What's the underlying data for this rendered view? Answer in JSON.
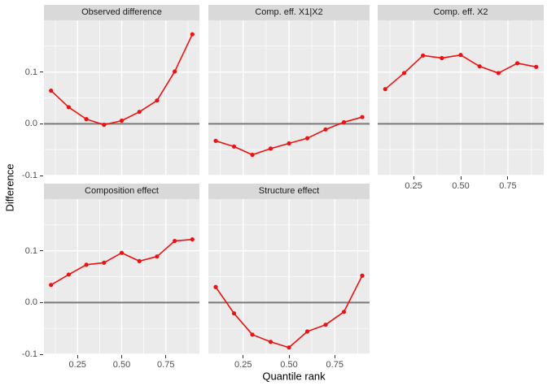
{
  "chart_data": {
    "type": "line",
    "title": "",
    "xlabel": "Quantile rank",
    "ylabel": "Difference",
    "legend": "none",
    "grid": true,
    "x": [
      0.1,
      0.2,
      0.3,
      0.4,
      0.5,
      0.6,
      0.7,
      0.8,
      0.9
    ],
    "panels": [
      {
        "title": "Observed difference",
        "row": 0,
        "col": 0,
        "values": [
          0.064,
          0.032,
          0.009,
          -0.002,
          0.006,
          0.023,
          0.045,
          0.101,
          0.173
        ]
      },
      {
        "title": "Comp. eff. X1|X2",
        "row": 0,
        "col": 1,
        "values": [
          -0.033,
          -0.044,
          -0.06,
          -0.048,
          -0.038,
          -0.028,
          -0.011,
          0.003,
          0.013
        ]
      },
      {
        "title": "Comp. eff. X2",
        "row": 0,
        "col": 2,
        "values": [
          0.067,
          0.098,
          0.132,
          0.127,
          0.133,
          0.111,
          0.098,
          0.117,
          0.11
        ]
      },
      {
        "title": "Composition effect",
        "row": 1,
        "col": 0,
        "values": [
          0.034,
          0.054,
          0.073,
          0.077,
          0.096,
          0.08,
          0.089,
          0.119,
          0.122
        ]
      },
      {
        "title": "Structure effect",
        "row": 1,
        "col": 1,
        "values": [
          0.03,
          -0.021,
          -0.062,
          -0.076,
          -0.087,
          -0.056,
          -0.043,
          -0.018,
          0.052
        ]
      }
    ],
    "x_axis": {
      "domain": [
        0.06,
        0.94
      ],
      "tick_values": [
        0.25,
        0.5,
        0.75
      ],
      "tick_labels": [
        "0.25",
        "0.50",
        "0.75"
      ],
      "minor_ticks": [
        0.125,
        0.375,
        0.625,
        0.875
      ]
    },
    "y_axis": {
      "domain": [
        -0.1,
        0.2
      ],
      "tick_values": [
        0.1,
        0.0,
        -0.1
      ],
      "tick_labels": [
        "0.1",
        "0.0",
        "-0.1"
      ],
      "minor_ticks": [
        0.15,
        0.05,
        -0.05
      ]
    },
    "reference_line_y": 0,
    "colors": {
      "series": "#EE1111",
      "panel_bg": "#EBEBEB",
      "strip_bg": "#D9D9D9",
      "grid": "#FFFFFF",
      "reference_line": "#7A7A7A",
      "axis_text": "#4D4D4D",
      "strip_text": "#1A1A1A",
      "tick_mark": "#333333"
    }
  }
}
